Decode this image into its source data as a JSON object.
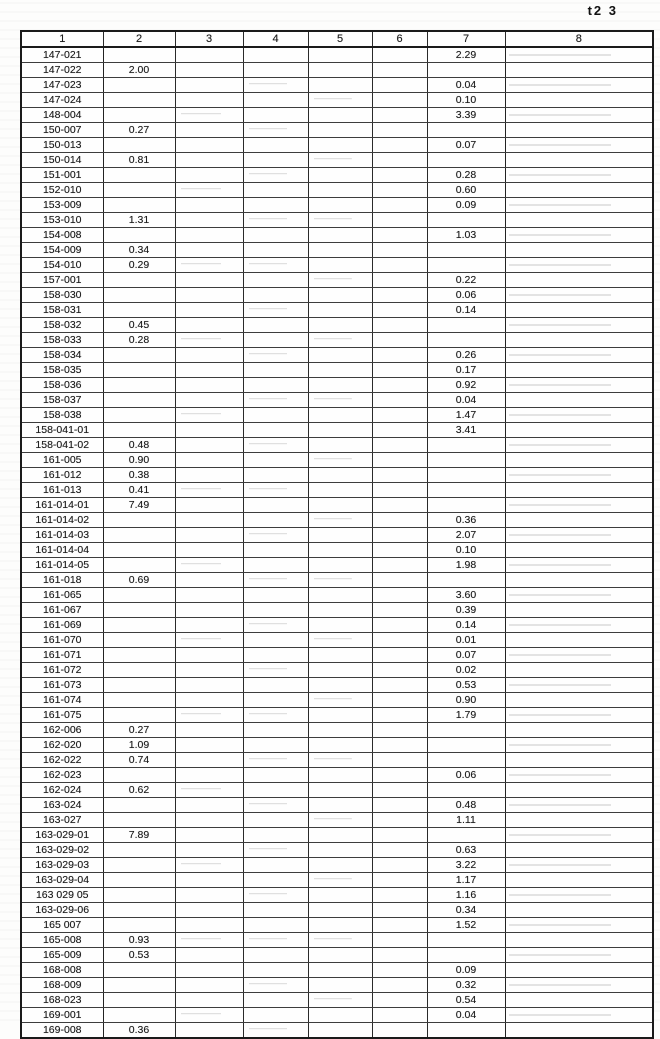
{
  "page_label": "t2 3",
  "table": {
    "headers": [
      "1",
      "2",
      "3",
      "4",
      "5",
      "6",
      "7",
      "8"
    ],
    "rows": [
      {
        "id": "147-021",
        "c2": "",
        "c7": "2.29"
      },
      {
        "id": "147-022",
        "c2": "2.00",
        "c7": ""
      },
      {
        "id": "147-023",
        "c2": "",
        "c7": "0.04"
      },
      {
        "id": "147-024",
        "c2": "",
        "c7": "0.10"
      },
      {
        "id": "148-004",
        "c2": "",
        "c7": "3.39"
      },
      {
        "id": "150-007",
        "c2": "0.27",
        "c7": ""
      },
      {
        "id": "150-013",
        "c2": "",
        "c7": "0.07"
      },
      {
        "id": "150-014",
        "c2": "0.81",
        "c7": ""
      },
      {
        "id": "151-001",
        "c2": "",
        "c7": "0.28"
      },
      {
        "id": "152-010",
        "c2": "",
        "c7": "0.60"
      },
      {
        "id": "153-009",
        "c2": "",
        "c7": "0.09"
      },
      {
        "id": "153-010",
        "c2": "1.31",
        "c7": ""
      },
      {
        "id": "154-008",
        "c2": "",
        "c7": "1.03"
      },
      {
        "id": "154-009",
        "c2": "0.34",
        "c7": ""
      },
      {
        "id": "154-010",
        "c2": "0.29",
        "c7": ""
      },
      {
        "id": "157-001",
        "c2": "",
        "c7": "0.22"
      },
      {
        "id": "158-030",
        "c2": "",
        "c7": "0.06"
      },
      {
        "id": "158-031",
        "c2": "",
        "c7": "0.14"
      },
      {
        "id": "158-032",
        "c2": "0.45",
        "c7": ""
      },
      {
        "id": "158-033",
        "c2": "0.28",
        "c7": ""
      },
      {
        "id": "158-034",
        "c2": "",
        "c7": "0.26"
      },
      {
        "id": "158-035",
        "c2": "",
        "c7": "0.17"
      },
      {
        "id": "158-036",
        "c2": "",
        "c7": "0.92"
      },
      {
        "id": "158-037",
        "c2": "",
        "c7": "0.04"
      },
      {
        "id": "158-038",
        "c2": "",
        "c7": "1.47"
      },
      {
        "id": "158-041-01",
        "c2": "",
        "c7": "3.41"
      },
      {
        "id": "158-041-02",
        "c2": "0.48",
        "c7": ""
      },
      {
        "id": "161-005",
        "c2": "0.90",
        "c7": ""
      },
      {
        "id": "161-012",
        "c2": "0.38",
        "c7": ""
      },
      {
        "id": "161-013",
        "c2": "0.41",
        "c7": ""
      },
      {
        "id": "161-014-01",
        "c2": "7.49",
        "c7": ""
      },
      {
        "id": "161-014-02",
        "c2": "",
        "c7": "0.36"
      },
      {
        "id": "161-014-03",
        "c2": "",
        "c7": "2.07"
      },
      {
        "id": "161-014-04",
        "c2": "",
        "c7": "0.10"
      },
      {
        "id": "161-014-05",
        "c2": "",
        "c7": "1.98"
      },
      {
        "id": "161-018",
        "c2": "0.69",
        "c7": ""
      },
      {
        "id": "161-065",
        "c2": "",
        "c7": "3.60"
      },
      {
        "id": "161-067",
        "c2": "",
        "c7": "0.39"
      },
      {
        "id": "161-069",
        "c2": "",
        "c7": "0.14"
      },
      {
        "id": "161-070",
        "c2": "",
        "c7": "0.01"
      },
      {
        "id": "161-071",
        "c2": "",
        "c7": "0.07"
      },
      {
        "id": "161-072",
        "c2": "",
        "c7": "0.02"
      },
      {
        "id": "161-073",
        "c2": "",
        "c7": "0.53"
      },
      {
        "id": "161-074",
        "c2": "",
        "c7": "0.90"
      },
      {
        "id": "161-075",
        "c2": "",
        "c7": "1.79"
      },
      {
        "id": "162-006",
        "c2": "0.27",
        "c7": ""
      },
      {
        "id": "162-020",
        "c2": "1.09",
        "c7": ""
      },
      {
        "id": "162-022",
        "c2": "0.74",
        "c7": ""
      },
      {
        "id": "162-023",
        "c2": "",
        "c7": "0.06"
      },
      {
        "id": "162-024",
        "c2": "0.62",
        "c7": ""
      },
      {
        "id": "163-024",
        "c2": "",
        "c7": "0.48"
      },
      {
        "id": "163-027",
        "c2": "",
        "c7": "1.11"
      },
      {
        "id": "163-029-01",
        "c2": "7.89",
        "c7": ""
      },
      {
        "id": "163-029-02",
        "c2": "",
        "c7": "0.63"
      },
      {
        "id": "163-029-03",
        "c2": "",
        "c7": "3.22"
      },
      {
        "id": "163-029-04",
        "c2": "",
        "c7": "1.17"
      },
      {
        "id": "163 029 05",
        "c2": "",
        "c7": "1.16"
      },
      {
        "id": "163-029-06",
        "c2": "",
        "c7": "0.34"
      },
      {
        "id": "165 007",
        "c2": "",
        "c7": "1.52"
      },
      {
        "id": "165-008",
        "c2": "0.93",
        "c7": ""
      },
      {
        "id": "165-009",
        "c2": "0.53",
        "c7": ""
      },
      {
        "id": "168-008",
        "c2": "",
        "c7": "0.09"
      },
      {
        "id": "168-009",
        "c2": "",
        "c7": "0.32"
      },
      {
        "id": "168-023",
        "c2": "",
        "c7": "0.54"
      },
      {
        "id": "169-001",
        "c2": "",
        "c7": "0.04"
      },
      {
        "id": "169-008",
        "c2": "0.36",
        "c7": ""
      }
    ]
  }
}
